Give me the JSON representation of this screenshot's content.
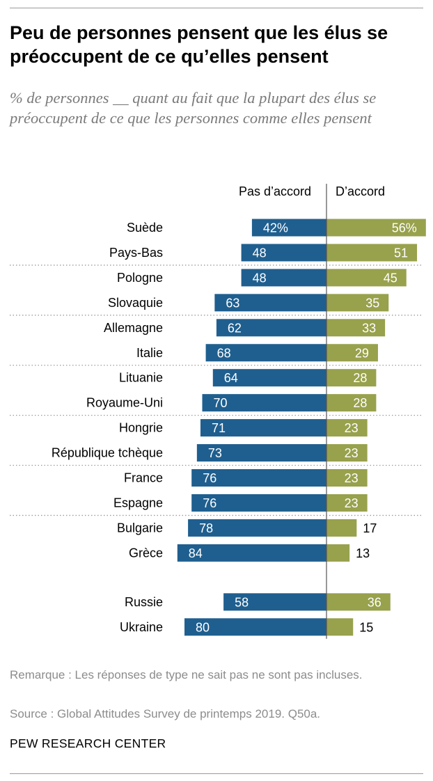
{
  "title": "Peu de personnes pensent que les élus se préoccupent de ce qu’elles pensent",
  "subtitle": "% de personnes __ quant au fait que la plupart des élus se préoccupent de ce que les personnes comme elles pensent",
  "note": "Remarque : Les réponses de type ne sait pas ne sont pas incluses.",
  "source": "Source : Global Attitudes Survey de printemps 2019. Q50a.",
  "brand": "PEW RESEARCH CENTER",
  "colors": {
    "disagree": "#1f5f8f",
    "agree": "#98a14c",
    "axis": "#555555"
  },
  "chart_data": {
    "type": "bar",
    "orientation": "diverging-horizontal",
    "column_headers": {
      "left": "Pas d’accord",
      "right": "D’accord"
    },
    "categories": [
      "Suède",
      "Pays-Bas",
      "Pologne",
      "Slovaquie",
      "Allemagne",
      "Italie",
      "Lituanie",
      "Royaume-Uni",
      "Hongrie",
      "République tchèque",
      "France",
      "Espagne",
      "Bulgarie",
      "Grèce",
      "Russie",
      "Ukraine"
    ],
    "series": [
      {
        "name": "Pas d’accord",
        "values": [
          42,
          48,
          48,
          63,
          62,
          68,
          64,
          70,
          71,
          73,
          76,
          76,
          78,
          84,
          58,
          80
        ]
      },
      {
        "name": "D’accord",
        "values": [
          56,
          51,
          45,
          35,
          33,
          29,
          28,
          28,
          23,
          23,
          23,
          23,
          17,
          13,
          36,
          15
        ]
      }
    ],
    "value_labels": {
      "left": [
        "42%",
        "48",
        "48",
        "63",
        "62",
        "68",
        "64",
        "70",
        "71",
        "73",
        "76",
        "76",
        "78",
        "84",
        "58",
        "80"
      ],
      "right": [
        "56%",
        "51",
        "45",
        "35",
        "33",
        "29",
        "28",
        "28",
        "23",
        "23",
        "23",
        "23",
        "17",
        "13",
        "36",
        "15"
      ]
    },
    "xlim": [
      0,
      100
    ]
  }
}
